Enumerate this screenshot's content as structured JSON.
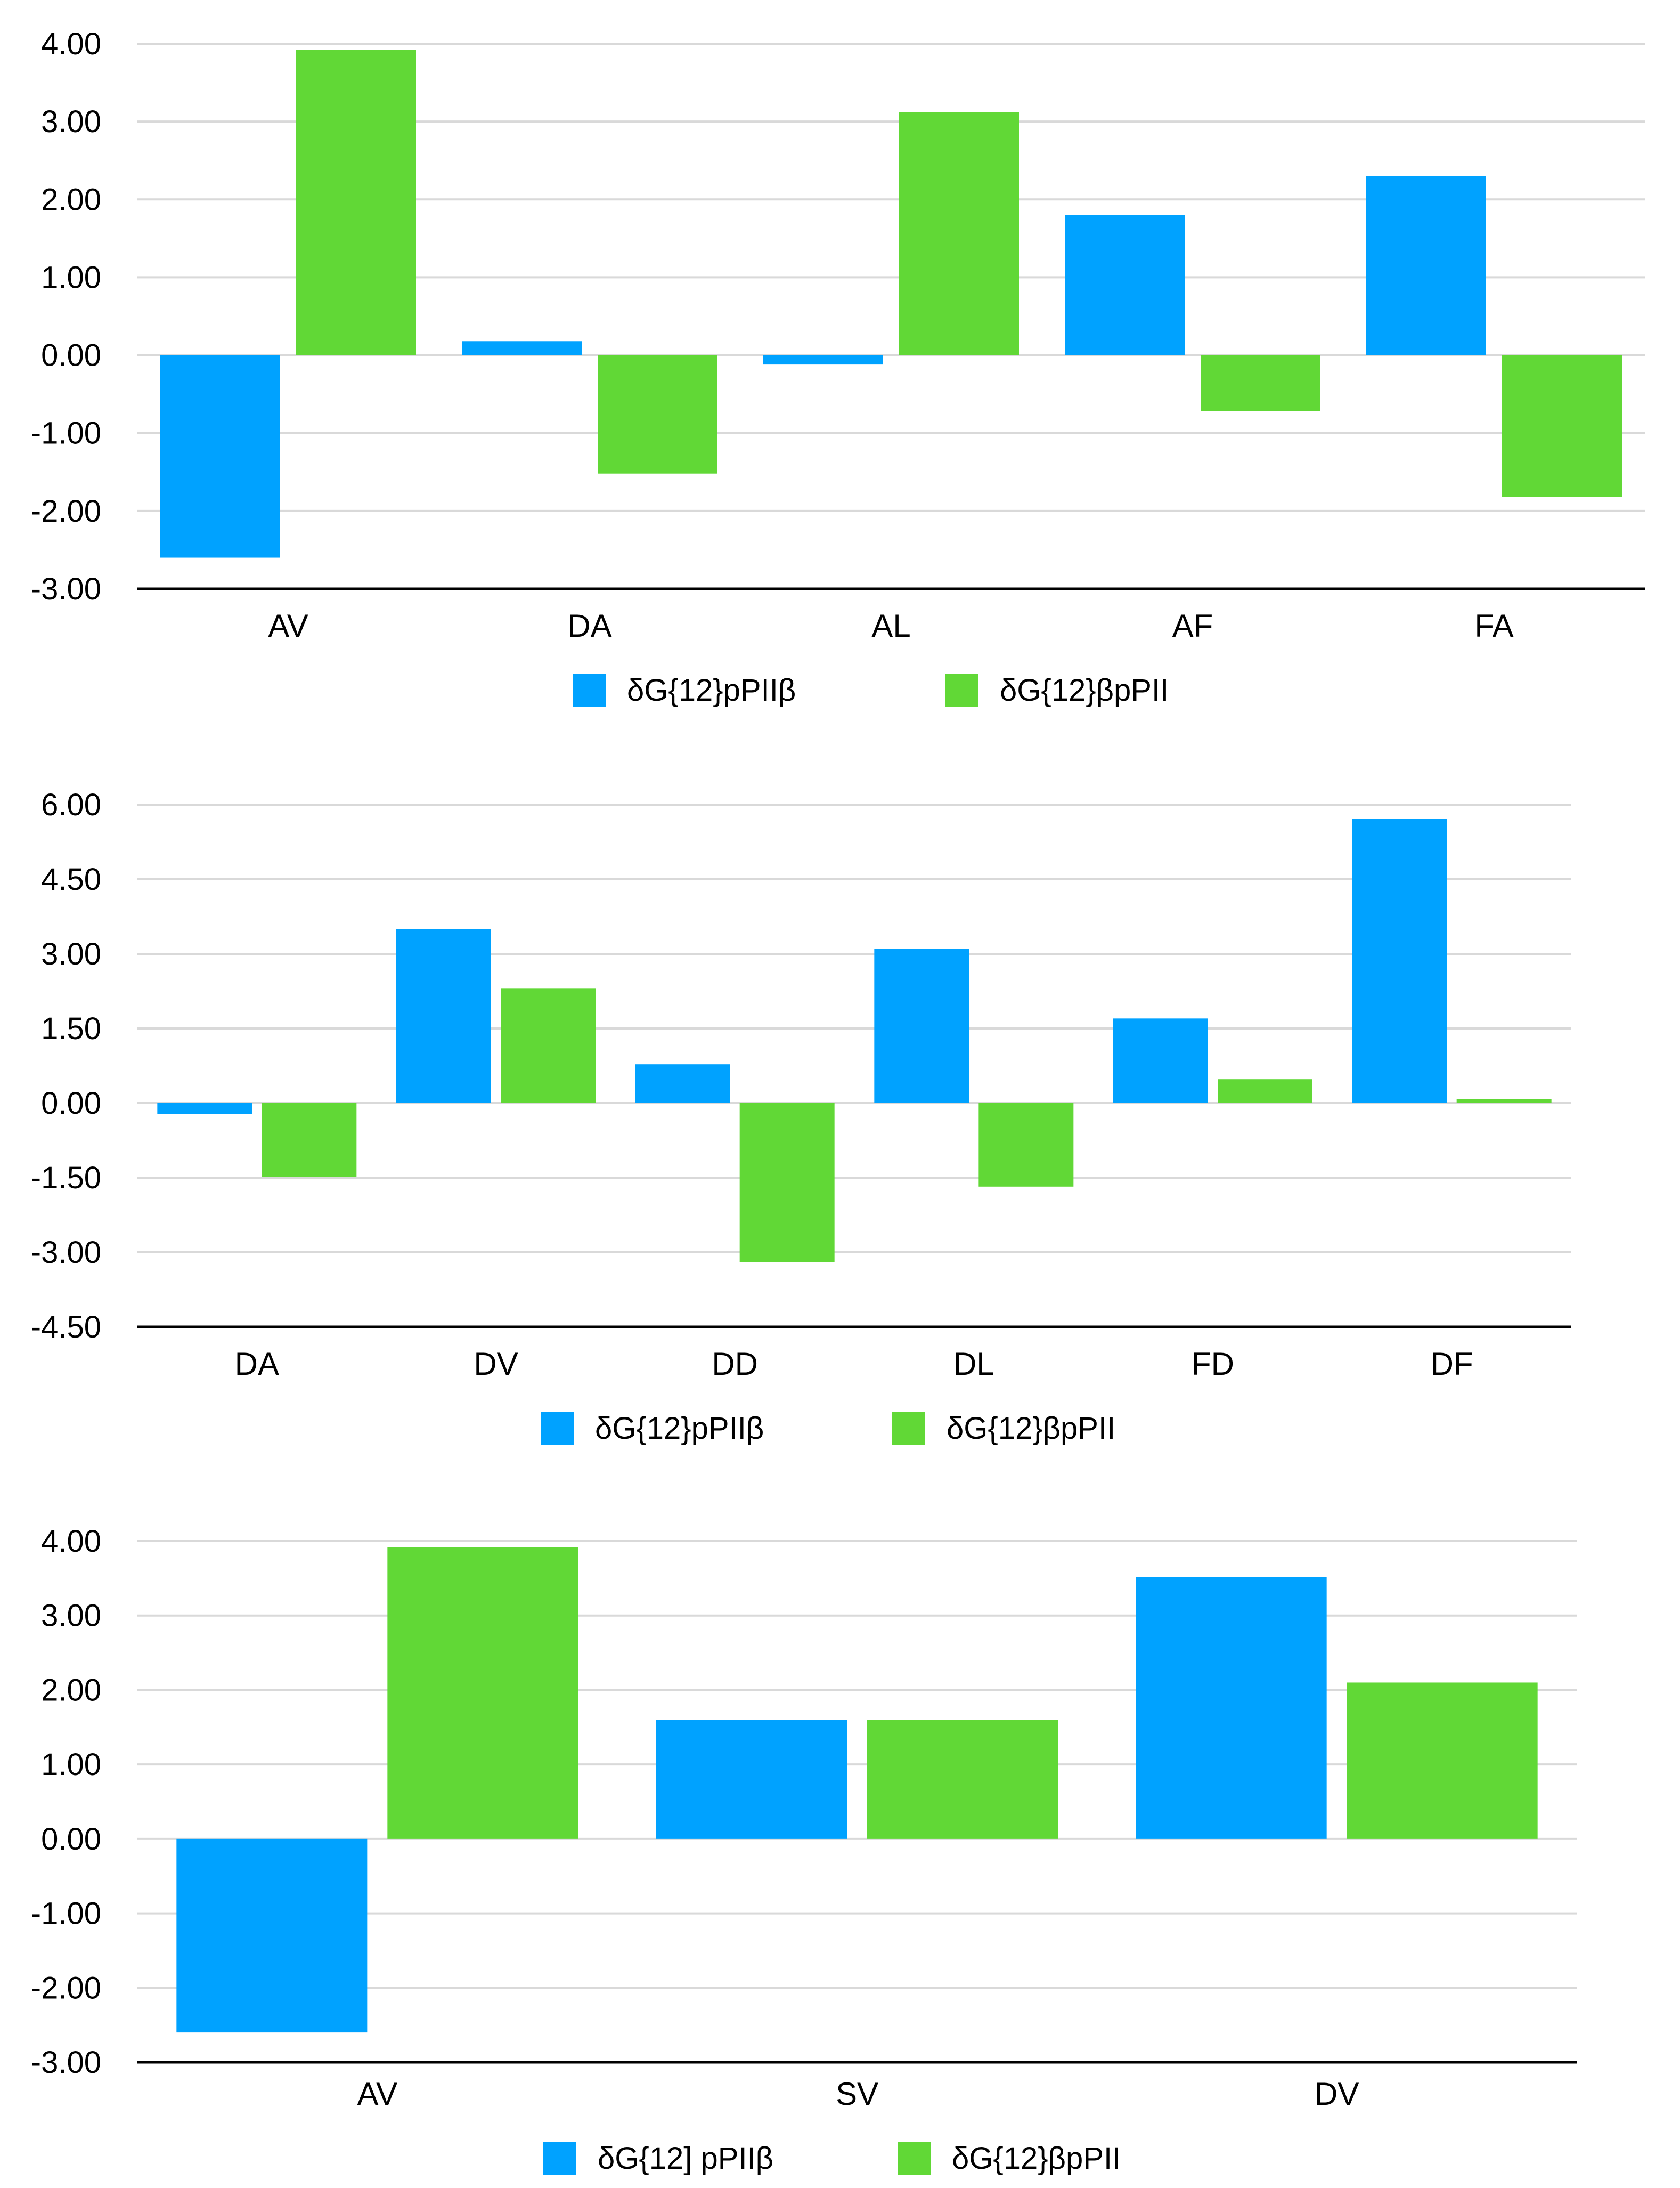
{
  "colors": {
    "series1": "#00a2ff",
    "series2": "#61d836",
    "grid": "#d9d9d9",
    "axis": "#000000"
  },
  "chart_data": [
    {
      "type": "bar",
      "categories": [
        "AV",
        "DA",
        "AL",
        "AF",
        "FA"
      ],
      "series": [
        {
          "name": "δG{12}pPIIβ",
          "values": [
            -2.6,
            0.18,
            -0.12,
            1.8,
            2.3
          ]
        },
        {
          "name": "δG{12}βpPII",
          "values": [
            3.92,
            -1.52,
            3.12,
            -0.72,
            -1.82
          ]
        }
      ],
      "yticks": [
        "4.00",
        "3.00",
        "2.00",
        "1.00",
        "0.00",
        "-1.00",
        "-2.00",
        "-3.00"
      ],
      "ylim": [
        -3,
        4
      ],
      "grid": true,
      "legend": "bottom"
    },
    {
      "type": "bar",
      "categories": [
        "DA",
        "DV",
        "DD",
        "DL",
        "FD",
        "DF"
      ],
      "series": [
        {
          "name": "δG{12}pPIIβ",
          "values": [
            -0.22,
            3.5,
            0.78,
            3.1,
            1.7,
            5.72
          ]
        },
        {
          "name": "δG{12}βpPII",
          "values": [
            -1.48,
            2.3,
            -3.2,
            -1.68,
            0.48,
            0.08
          ]
        }
      ],
      "yticks": [
        "6.00",
        "4.50",
        "3.00",
        "1.50",
        "0.00",
        "-1.50",
        "-3.00",
        "-4.50"
      ],
      "ylim": [
        -4.5,
        6
      ],
      "grid": true,
      "legend": "bottom"
    },
    {
      "type": "bar",
      "categories": [
        "AV",
        "SV",
        "DV"
      ],
      "series": [
        {
          "name": "δG{12] pPIIβ",
          "values": [
            -2.6,
            1.6,
            3.52
          ]
        },
        {
          "name": "δG{12}βpPII",
          "values": [
            3.92,
            1.6,
            2.1
          ]
        }
      ],
      "yticks": [
        "4.00",
        "3.00",
        "2.00",
        "1.00",
        "0.00",
        "-1.00",
        "-2.00",
        "-3.00"
      ],
      "ylim": [
        -3,
        4
      ],
      "grid": true,
      "legend": "bottom"
    }
  ]
}
